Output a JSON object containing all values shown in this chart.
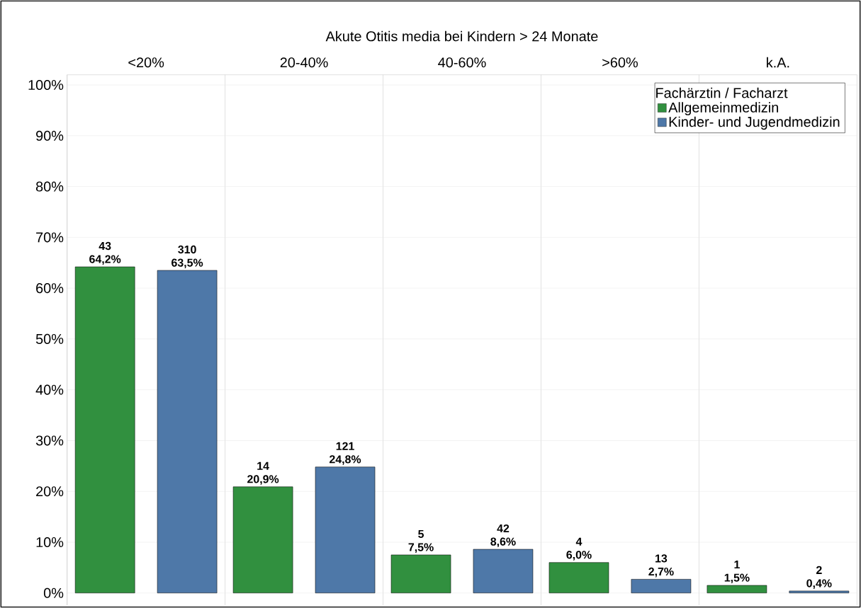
{
  "chart_data": {
    "type": "bar",
    "title": "Akute Otitis media bei Kindern   > 24 Monate",
    "categories": [
      "<20%",
      "20-40%",
      "40-60%",
      ">60%",
      "k.A."
    ],
    "series": [
      {
        "name": "Allgemeinmedizin",
        "color": "#31903f",
        "values": [
          64.2,
          20.9,
          7.5,
          6.0,
          1.5
        ],
        "value_labels": [
          "43 64,2%",
          "14 20,9%",
          "5 7,5%",
          "4 6,0%",
          "1 1,5%"
        ]
      },
      {
        "name": "Kinder- und Jugendmedizin",
        "color": "#4e78a8",
        "values": [
          63.5,
          24.8,
          8.6,
          2.7,
          0.4
        ],
        "value_labels": [
          "310 63,5%",
          "121 24,8%",
          "42 8,6%",
          "13 2,7%",
          "2 0,4%"
        ]
      }
    ],
    "legend_title": "Fachärztin / Facharzt",
    "legend": "top right",
    "ylim": [
      -2.4,
      102
    ],
    "yticks": [
      {
        "value": 0,
        "label": "0%"
      },
      {
        "value": 10,
        "label": "10%"
      },
      {
        "value": 20,
        "label": "20%"
      },
      {
        "value": 30,
        "label": "30%"
      },
      {
        "value": 40,
        "label": "40%"
      },
      {
        "value": 50,
        "label": "50%"
      },
      {
        "value": 60,
        "label": "60%"
      },
      {
        "value": 70,
        "label": "70%"
      },
      {
        "value": 80,
        "label": "80%"
      },
      {
        "value": 90,
        "label": "90%"
      },
      {
        "value": 100,
        "label": "100%"
      }
    ],
    "grid": "y"
  }
}
